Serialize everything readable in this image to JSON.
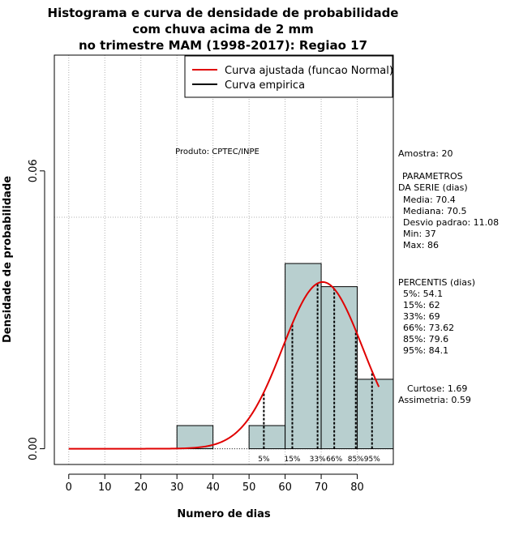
{
  "chart_data": {
    "type": "histogram",
    "title": [
      "Histograma e curva de densidade de probabilidade",
      "com chuva acima de 2 mm",
      "no trimestre MAM (1998-2017): Regiao 17"
    ],
    "xlabel": "Numero de dias",
    "ylabel": "Densidade de probabilidade",
    "xlim": [
      -4,
      90
    ],
    "ylim": [
      -0.0034,
      0.085
    ],
    "x_ticks": [
      0,
      10,
      20,
      30,
      40,
      50,
      60,
      70,
      80
    ],
    "y_ticks": [
      0.0,
      0.06
    ],
    "y_tick_labels": [
      "0.00",
      "0.06"
    ],
    "y_gridline": 0.05,
    "bins": [
      {
        "from": 30,
        "to": 40,
        "density": 0.005
      },
      {
        "from": 50,
        "to": 60,
        "density": 0.005
      },
      {
        "from": 60,
        "to": 70,
        "density": 0.04
      },
      {
        "from": 70,
        "to": 80,
        "density": 0.035
      },
      {
        "from": 80,
        "to": 90,
        "density": 0.015
      }
    ],
    "bar_color": "#b8cfcf",
    "curve_color": "#e00000",
    "normal_fit": {
      "mean": 70.4,
      "sd": 11.08,
      "x_from": 0,
      "x_to": 86
    },
    "legend": {
      "position": "top-right",
      "entries": [
        {
          "label": "Curva ajustada (funcao Normal)",
          "color": "#e00000"
        },
        {
          "label": "Curva empirica",
          "color": "#000000"
        }
      ]
    },
    "percentiles": [
      {
        "label": "5%",
        "value": 54.1
      },
      {
        "label": "15%",
        "value": 62
      },
      {
        "label": "33%",
        "value": 69
      },
      {
        "label": "66%",
        "value": 73.62
      },
      {
        "label": "85%",
        "value": 79.6
      },
      {
        "label": "95%",
        "value": 84.1
      }
    ],
    "annotation": "Produto: CPTEC/INPE"
  },
  "sidebar": {
    "sample": "Amostra: 20",
    "params_title_1": "PARAMETROS",
    "params_title_2": "DA SERIE (dias)",
    "media": "Media: 70.4",
    "mediana": "Mediana: 70.5",
    "desvio": "Desvio padrao: 11.08",
    "min": "Min: 37",
    "max": "Max: 86",
    "percents_title": "PERCENTIS (dias)",
    "p5": "5%: 54.1",
    "p15": "15%: 62",
    "p33": "33%: 69",
    "p66": "66%: 73.62",
    "p85": "85%: 79.6",
    "p95": "95%: 84.1",
    "curtose": "Curtose: 1.69",
    "assimetria": "Assimetria: 0.59"
  }
}
